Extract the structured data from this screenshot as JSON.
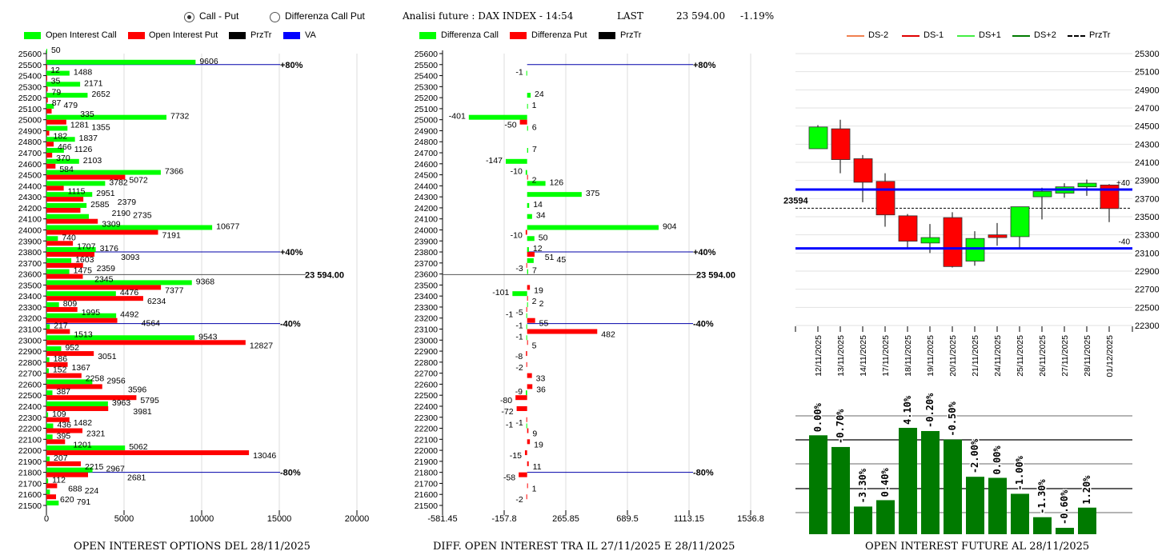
{
  "header": {
    "radio_call_put": "Call - Put",
    "radio_diff": "Differenza Call Put",
    "selected": "Call - Put",
    "title": "Analisi future : DAX INDEX - 14:54",
    "last_label": "LAST",
    "last_value": "23 594.00",
    "change": "-1.19%"
  },
  "colors": {
    "call": "#00ff00",
    "put": "#ff0000",
    "przTr": "#000000",
    "va": "#0000ff",
    "bar": "#007a00",
    "ds_minus2": "#f08050",
    "ds_minus1": "#e00000",
    "ds_plus1": "#44ee44",
    "ds_plus2": "#007a00"
  },
  "legend1": [
    "Open Interest Call",
    "Open Interest Put",
    "PrzTr",
    "VA"
  ],
  "legend2": [
    "Differenza Call",
    "Differenza Put",
    "PrzTr"
  ],
  "legend3": [
    "DS-2",
    "DS-1",
    "DS+1",
    "DS+2",
    "PrzTr"
  ],
  "chart_data": [
    {
      "type": "bar",
      "orientation": "horizontal",
      "title": "OPEN INTEREST OPTIONS DEL 28/11/2025",
      "strikes": [
        25600,
        25500,
        25400,
        25300,
        25200,
        25100,
        25000,
        24900,
        24800,
        24700,
        24600,
        24500,
        24400,
        24300,
        24200,
        24100,
        24000,
        23900,
        23800,
        23700,
        23600,
        23500,
        23400,
        23300,
        23200,
        23100,
        23000,
        22900,
        22800,
        22700,
        22600,
        22500,
        22400,
        22300,
        22200,
        22100,
        22000,
        21900,
        21800,
        21700,
        21600,
        21500
      ],
      "series": [
        {
          "name": "Open Interest Call",
          "values": [
            50,
            9606,
            1488,
            2171,
            2652,
            479,
            7732,
            1355,
            1837,
            1126,
            2103,
            7366,
            3782,
            2951,
            2585,
            2735,
            10677,
            740,
            3176,
            1603,
            1475,
            9368,
            4476,
            809,
            4492,
            217,
            9543,
            952,
            186,
            152,
            2956,
            387,
            3963,
            109,
            436,
            395,
            5062,
            207,
            2967,
            112,
            224,
            791
          ]
        },
        {
          "name": "Open Interest Put",
          "values": [
            0,
            12,
            35,
            79,
            87,
            335,
            1281,
            182,
            466,
            370,
            584,
            5072,
            1115,
            2379,
            2190,
            3309,
            7191,
            1707,
            3093,
            2359,
            2345,
            7377,
            6234,
            1995,
            4564,
            1513,
            12827,
            3051,
            1367,
            2258,
            3596,
            5795,
            3981,
            1482,
            2321,
            1201,
            13046,
            2215,
            2681,
            688,
            620,
            0
          ]
        }
      ],
      "xlim": [
        0,
        20000
      ],
      "xticks": [
        "0",
        "5000",
        "10000",
        "15000",
        "20000"
      ],
      "levels": [
        {
          "label": "+80%",
          "strike": 25500
        },
        {
          "label": "+40%",
          "strike": 23800
        },
        {
          "label": "-40%",
          "strike": 23150
        },
        {
          "label": "-80%",
          "strike": 21800
        }
      ],
      "przTr": {
        "value": 23594,
        "label": "23 594.00"
      },
      "grid": true
    },
    {
      "type": "bar",
      "orientation": "horizontal",
      "title": "DIFF. OPEN INTEREST TRA IL 27/11/2025 E 28/11/2025",
      "series": [
        {
          "name": "Differenza Call",
          "values": [
            null,
            null,
            -1,
            null,
            24,
            1,
            -401,
            6,
            null,
            7,
            -147,
            -10,
            126,
            375,
            14,
            34,
            904,
            50,
            12,
            45,
            7,
            null,
            -101,
            2,
            -1,
            -1,
            -1,
            null,
            null,
            null,
            null,
            -9,
            null,
            null,
            -1,
            null,
            null,
            null,
            null,
            null,
            null,
            null
          ]
        },
        {
          "name": "Differenza Put",
          "values": [
            null,
            null,
            null,
            null,
            null,
            null,
            -50,
            null,
            null,
            null,
            null,
            2,
            null,
            null,
            null,
            null,
            -10,
            null,
            51,
            -3,
            null,
            19,
            2,
            -5,
            55,
            482,
            5,
            -8,
            -2,
            33,
            36,
            -80,
            -72,
            -1,
            9,
            19,
            -15,
            11,
            -58,
            1,
            -2,
            null
          ]
        }
      ],
      "xlim": [
        -581.45,
        1536.8
      ],
      "xticks": [
        "-581.45",
        "-157.8",
        "265.85",
        "689.5",
        "1113.15",
        "1536.8"
      ],
      "levels": [
        {
          "label": "+80%",
          "strike": 25500
        },
        {
          "label": "+40%",
          "strike": 23800
        },
        {
          "label": "-40%",
          "strike": 23150
        },
        {
          "label": "-80%",
          "strike": 21800
        }
      ],
      "przTr": {
        "value": 23594,
        "label": "23 594.00"
      },
      "grid": true
    },
    {
      "type": "candlestick",
      "dates": [
        "12/11/2025",
        "13/11/2025",
        "14/11/2025",
        "17/11/2025",
        "18/11/2025",
        "19/11/2025",
        "20/11/2025",
        "21/11/2025",
        "24/11/2025",
        "25/11/2025",
        "26/11/2025",
        "27/11/2025",
        "28/11/2025",
        "01/12/2025"
      ],
      "ohlc": [
        [
          24250,
          24510,
          24250,
          24490
        ],
        [
          24470,
          24570,
          23980,
          24130
        ],
        [
          24140,
          24180,
          23660,
          23880
        ],
        [
          23890,
          23980,
          23390,
          23520
        ],
        [
          23510,
          23530,
          23150,
          23230
        ],
        [
          23210,
          23420,
          23100,
          23270
        ],
        [
          23490,
          23550,
          22940,
          22950
        ],
        [
          23010,
          23340,
          22960,
          23260
        ],
        [
          23300,
          23430,
          23180,
          23270
        ],
        [
          23280,
          23610,
          23160,
          23610
        ],
        [
          23720,
          23820,
          23470,
          23780
        ],
        [
          23760,
          23870,
          23710,
          23830
        ],
        [
          23830,
          23910,
          23730,
          23870
        ],
        [
          23850,
          23860,
          23440,
          23590
        ]
      ],
      "ylim": [
        22300,
        25300
      ],
      "yticks": [
        "25300",
        "25100",
        "24900",
        "24700",
        "24500",
        "24300",
        "24100",
        "23900",
        "23700",
        "23500",
        "23300",
        "23100",
        "22900",
        "22700",
        "22500",
        "22300"
      ],
      "levels": [
        {
          "label": "+40",
          "value": 23800
        },
        {
          "label": "-40",
          "value": 23150
        }
      ],
      "przTr": {
        "value": 23594,
        "label": "23594"
      },
      "grid": true,
      "legend_position": "top"
    },
    {
      "type": "bar",
      "title": "OPEN INTEREST FUTURE AL 28/11/2025",
      "categories": [
        "12/11/2025",
        "13/11/2025",
        "14/11/2025",
        "17/11/2025",
        "18/11/2025",
        "19/11/2025",
        "20/11/2025",
        "21/11/2025",
        "24/11/2025",
        "25/11/2025",
        "26/11/2025",
        "27/11/2025",
        "28/11/2025"
      ],
      "relative_values_pct_of_max": [
        93,
        82,
        26,
        32,
        100,
        97,
        89,
        54,
        53,
        38,
        16,
        6,
        25
      ],
      "labels": [
        "0.00%",
        "-0.70%",
        "-3.30%",
        "0.40%",
        "4.10%",
        "-0.20%",
        "-0.50%",
        "-2.00%",
        "0.00%",
        "-1.00%",
        "-1.30%",
        "-0.60%",
        "1.20%"
      ],
      "grid": true
    }
  ]
}
